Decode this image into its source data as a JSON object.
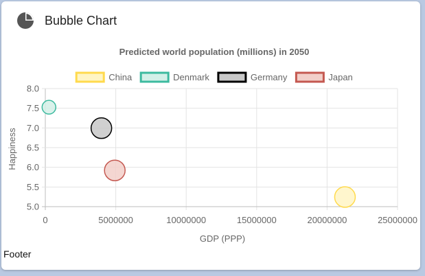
{
  "card": {
    "title": "Bubble Chart",
    "icon": "pie-chart-icon",
    "footer": "Footer"
  },
  "chart_data": {
    "type": "bubble",
    "title": "Predicted world population (millions) in 2050",
    "xlabel": "GDP (PPP)",
    "ylabel": "Happiness",
    "xlim": [
      0,
      25000000
    ],
    "ylim": [
      5.0,
      8.0
    ],
    "xticks": [
      "0",
      "5000000",
      "10000000",
      "15000000",
      "20000000",
      "25000000"
    ],
    "yticks": [
      "5.0",
      "5.5",
      "6.0",
      "6.5",
      "7.0",
      "7.5",
      "8.0"
    ],
    "grid": true,
    "legend_position": "top",
    "series": [
      {
        "name": "China",
        "x": 21269017,
        "y": 5.245,
        "r": 15,
        "border": "#ffda4d",
        "fill": "#fff5c4"
      },
      {
        "name": "Denmark",
        "x": 258702,
        "y": 7.526,
        "r": 10,
        "border": "#3cba9f",
        "fill": "#d3f0e8"
      },
      {
        "name": "Germany",
        "x": 3979083,
        "y": 6.994,
        "r": 15,
        "border": "#000000",
        "fill": "#c8c8c8"
      },
      {
        "name": "Japan",
        "x": 4931877,
        "y": 5.921,
        "r": 15,
        "border": "#c45850",
        "fill": "#f2cfc9"
      }
    ]
  }
}
